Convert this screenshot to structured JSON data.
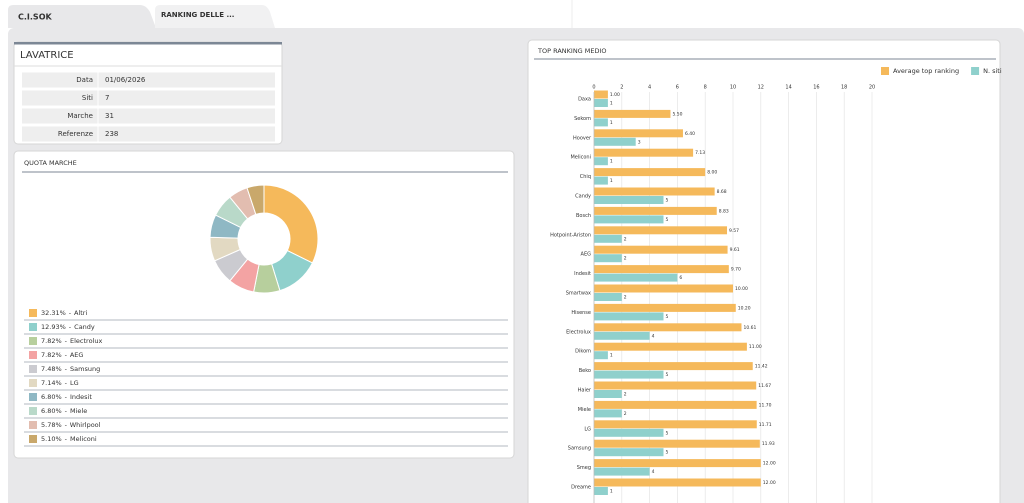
{
  "tabs": [
    "C.I.SOK",
    "RANKING DELLE ..."
  ],
  "info": {
    "title": "LAVATRICE",
    "rows": [
      [
        "Data",
        "01/06/2026"
      ],
      [
        "Siti",
        "7"
      ],
      [
        "Marche",
        "31"
      ],
      [
        "Referenze",
        "238"
      ]
    ]
  },
  "chart_data": [
    {
      "type": "donut",
      "title": "QUOTA MARCHE",
      "label_separator": "-",
      "categories": [
        "Altri",
        "Candy",
        "Electrolux",
        "AEG",
        "Samsung",
        "LG",
        "Indesit",
        "Miele",
        "Whirlpool",
        "Meliconi"
      ],
      "values": [
        32.31,
        12.93,
        7.82,
        7.82,
        7.48,
        7.14,
        6.8,
        6.8,
        5.78,
        5.1
      ],
      "value_labels": [
        "32.31%",
        "12.93%",
        "7.82%",
        "7.82%",
        "7.48%",
        "7.14%",
        "6.80%",
        "6.80%",
        "5.78%",
        "5.10%"
      ],
      "colors": [
        "#f5b95b",
        "#8fd0cc",
        "#b7cf9d",
        "#f3a3a3",
        "#cbcbd0",
        "#e2d9c2",
        "#8fb8c4",
        "#b9d9c9",
        "#e2bdb0",
        "#c9a86b"
      ]
    },
    {
      "type": "hbar",
      "title": "TOP RANKING MEDIO",
      "categories": [
        "Daxa",
        "Sekom",
        "Hoover",
        "Meliconi",
        "Chiq",
        "Candy",
        "Bosch",
        "Hotpoint-Ariston",
        "AEG",
        "Indesit",
        "Smartwax",
        "Hisense",
        "Electrolux",
        "Dikom",
        "Beko",
        "Haier",
        "Miele",
        "LG",
        "Samsung",
        "Smeg",
        "Dreame"
      ],
      "series": [
        {
          "name": "Average top ranking",
          "color": "#f5b95b",
          "values": [
            1.0,
            5.5,
            6.4,
            7.13,
            8.0,
            8.68,
            8.83,
            9.57,
            9.61,
            9.7,
            10.0,
            10.2,
            10.61,
            11.0,
            11.42,
            11.67,
            11.7,
            11.71,
            11.93,
            12.0,
            12.0
          ],
          "value_labels": [
            "1.00",
            "5.50",
            "6.40",
            "7.13",
            "8.00",
            "8.68",
            "8.83",
            "9.57",
            "9.61",
            "9.70",
            "10.00",
            "10.20",
            "10.61",
            "11.00",
            "11.42",
            "11.67",
            "11.70",
            "11.71",
            "11.93",
            "12.00",
            "12.00"
          ]
        },
        {
          "name": "N. siti",
          "color": "#8fd0cc",
          "values": [
            1,
            1,
            3,
            1,
            1,
            5,
            5,
            2,
            2,
            6,
            2,
            5,
            4,
            1,
            5,
            2,
            2,
            5,
            5,
            4,
            1
          ]
        }
      ],
      "xlim": [
        0,
        20
      ],
      "xticks": [
        0,
        2,
        4,
        6,
        8,
        10,
        12,
        14,
        16,
        18,
        20
      ],
      "grid": true,
      "legend": "top-right"
    }
  ]
}
